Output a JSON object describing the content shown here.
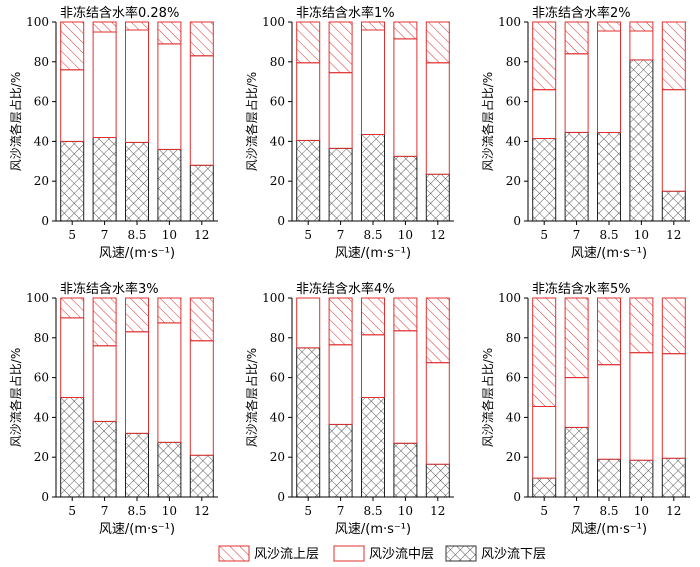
{
  "figure": {
    "legend": [
      {
        "key": "upper",
        "label": "风沙流上层"
      },
      {
        "key": "middle",
        "label": "风沙流中层"
      },
      {
        "key": "lower",
        "label": "风沙流下层"
      }
    ],
    "colors": {
      "bar_edge": "#e03030",
      "upper_hatch": "#e03030",
      "lower_hatch": "#333333",
      "axis": "#000000"
    }
  },
  "chart_data": [
    {
      "type": "bar",
      "stacked": true,
      "title": "非冻结含水率0.28%",
      "xlabel": "风速/(m·s⁻¹)",
      "ylabel": "风沙流各层占比/%",
      "categories": [
        "5",
        "7",
        "8.5",
        "10",
        "12"
      ],
      "ylim": [
        0,
        100
      ],
      "yticks": [
        0,
        20,
        40,
        60,
        80,
        100
      ],
      "series": [
        {
          "name": "风沙流下层",
          "values": [
            40,
            42,
            39.5,
            36,
            28
          ]
        },
        {
          "name": "风沙流中层",
          "values": [
            36,
            53,
            56.5,
            53,
            55
          ]
        },
        {
          "name": "风沙流上层",
          "values": [
            24,
            5,
            4,
            11,
            17
          ]
        }
      ]
    },
    {
      "type": "bar",
      "stacked": true,
      "title": "非冻结含水率1%",
      "xlabel": "风速/(m·s⁻¹)",
      "ylabel": "风沙流各层占比/%",
      "categories": [
        "5",
        "7",
        "8.5",
        "10",
        "12"
      ],
      "ylim": [
        0,
        100
      ],
      "yticks": [
        0,
        20,
        40,
        60,
        80,
        100
      ],
      "series": [
        {
          "name": "风沙流下层",
          "values": [
            40.5,
            36.5,
            43.5,
            32.5,
            23.5
          ]
        },
        {
          "name": "风沙流中层",
          "values": [
            39,
            38,
            52.5,
            59,
            56
          ]
        },
        {
          "name": "风沙流上层",
          "values": [
            20.5,
            25.5,
            4,
            8.5,
            20.5
          ]
        }
      ]
    },
    {
      "type": "bar",
      "stacked": true,
      "title": "非冻结含水率2%",
      "xlabel": "风速/(m·s⁻¹)",
      "ylabel": "风沙流各层占比/%",
      "categories": [
        "5",
        "7",
        "8.5",
        "10",
        "12"
      ],
      "ylim": [
        0,
        100
      ],
      "yticks": [
        0,
        20,
        40,
        60,
        80,
        100
      ],
      "series": [
        {
          "name": "风沙流下层",
          "values": [
            41.5,
            44.5,
            44.5,
            81,
            15
          ]
        },
        {
          "name": "风沙流中层",
          "values": [
            24.5,
            39.5,
            51,
            14.5,
            51
          ]
        },
        {
          "name": "风沙流上层",
          "values": [
            34,
            16,
            4.5,
            4.5,
            34
          ]
        }
      ]
    },
    {
      "type": "bar",
      "stacked": true,
      "title": "非冻结含水率3%",
      "xlabel": "风速/(m·s⁻¹)",
      "ylabel": "风沙流各层占比/%",
      "categories": [
        "5",
        "7",
        "8.5",
        "10",
        "12"
      ],
      "ylim": [
        0,
        100
      ],
      "yticks": [
        0,
        20,
        40,
        60,
        80,
        100
      ],
      "series": [
        {
          "name": "风沙流下层",
          "values": [
            50,
            38,
            32,
            27.5,
            21
          ]
        },
        {
          "name": "风沙流中层",
          "values": [
            40,
            38,
            51,
            60,
            57.5
          ]
        },
        {
          "name": "风沙流上层",
          "values": [
            10,
            24,
            17,
            12.5,
            21.5
          ]
        }
      ]
    },
    {
      "type": "bar",
      "stacked": true,
      "title": "非冻结含水率4%",
      "xlabel": "风速/(m·s⁻¹)",
      "ylabel": "风沙流各层占比/%",
      "categories": [
        "5",
        "7",
        "8.5",
        "10",
        "12"
      ],
      "ylim": [
        0,
        100
      ],
      "yticks": [
        0,
        20,
        40,
        60,
        80,
        100
      ],
      "series": [
        {
          "name": "风沙流下层",
          "values": [
            75,
            36.5,
            50,
            27,
            16.5
          ]
        },
        {
          "name": "风沙流中层",
          "values": [
            25,
            40,
            31.5,
            56.5,
            51
          ]
        },
        {
          "name": "风沙流上层",
          "values": [
            0,
            23.5,
            18.5,
            16.5,
            32.5
          ]
        }
      ]
    },
    {
      "type": "bar",
      "stacked": true,
      "title": "非冻结含水率5%",
      "xlabel": "风速/(m·s⁻¹)",
      "ylabel": "风沙流各层占比/%",
      "categories": [
        "5",
        "7",
        "8.5",
        "10",
        "12"
      ],
      "ylim": [
        0,
        100
      ],
      "yticks": [
        0,
        20,
        40,
        60,
        80,
        100
      ],
      "series": [
        {
          "name": "风沙流下层",
          "values": [
            9.5,
            35,
            19,
            18.5,
            19.5
          ]
        },
        {
          "name": "风沙流中层",
          "values": [
            36,
            25,
            47.5,
            54,
            52.5
          ]
        },
        {
          "name": "风沙流上层",
          "values": [
            54.5,
            40,
            33.5,
            27.5,
            28
          ]
        }
      ]
    }
  ]
}
